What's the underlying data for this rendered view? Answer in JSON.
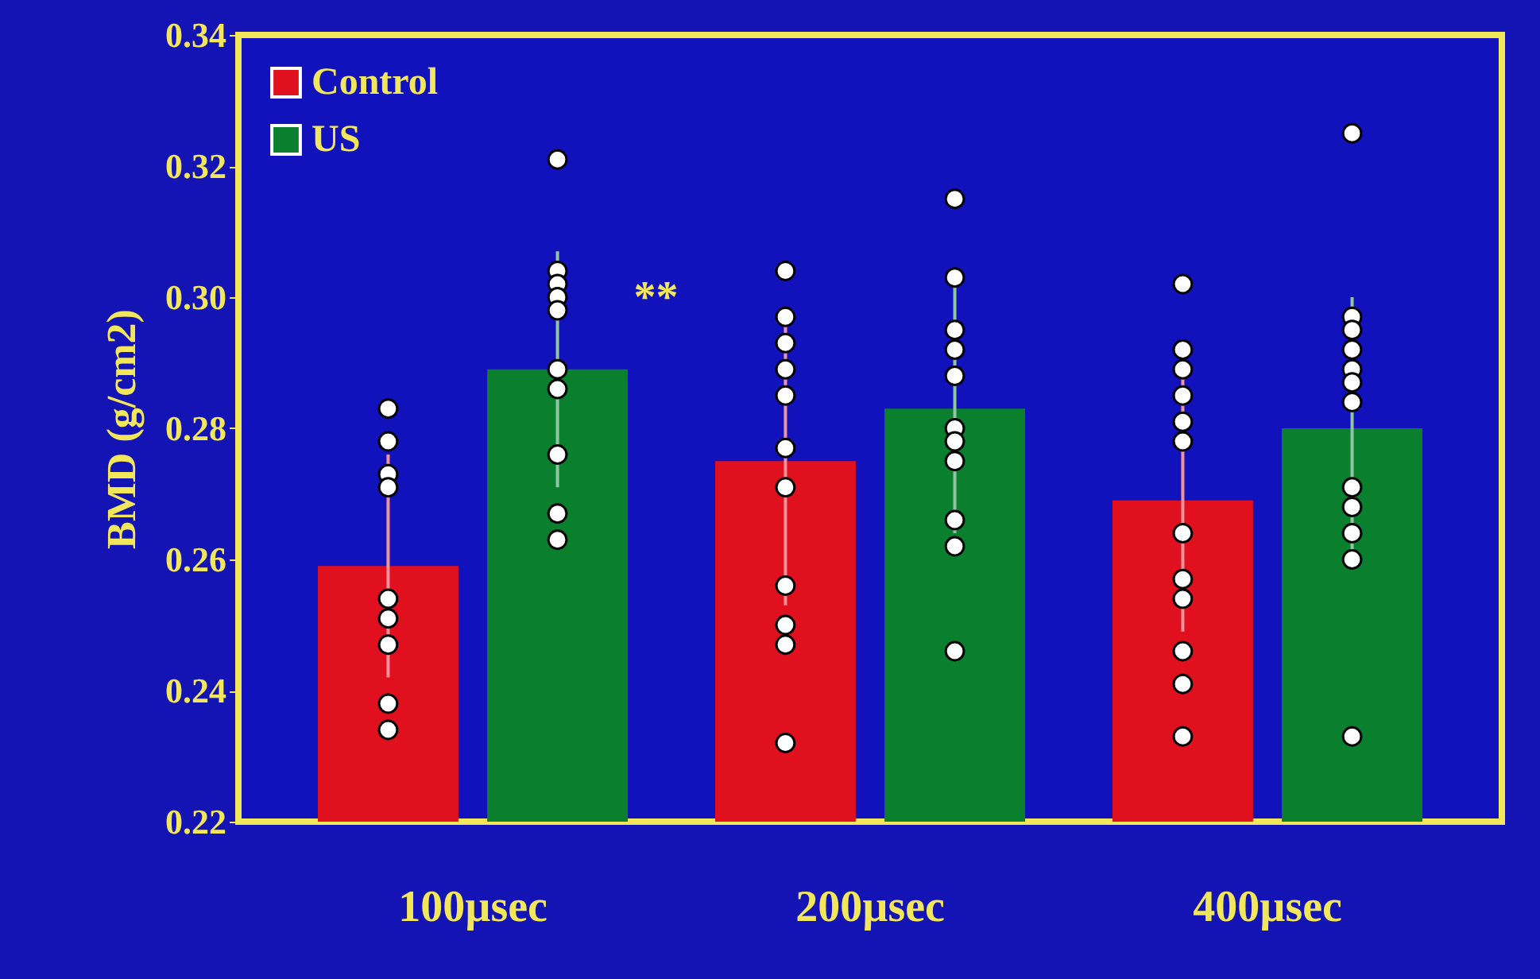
{
  "chart_data": {
    "type": "bar",
    "ylabel": "BMD (g/cm2)",
    "categories": [
      "100µsec",
      "200µsec",
      "400µsec"
    ],
    "ylim": [
      0.22,
      0.34
    ],
    "yticks": [
      0.22,
      0.24,
      0.26,
      0.28,
      {
        "value": 0.3,
        "label": "0.30"
      },
      0.32,
      0.34
    ],
    "grid": false,
    "legend": "top left",
    "series": [
      {
        "name": "Control",
        "type": "bar",
        "color": "#e0101e",
        "values": [
          0.259,
          0.275,
          0.269
        ],
        "errors": [
          0.017,
          0.022,
          0.02
        ]
      },
      {
        "name": "US",
        "type": "bar",
        "color": "#0a7f2e",
        "values": [
          0.289,
          0.283,
          0.28
        ],
        "errors": [
          0.018,
          0.019,
          0.02
        ]
      },
      {
        "type": "scatter",
        "color": "#ffffff",
        "x": [
          "100µsec",
          "100µsec",
          "100µsec",
          "100µsec",
          "100µsec",
          "100µsec",
          "100µsec",
          "100µsec",
          "100µsec",
          "200µsec",
          "200µsec",
          "200µsec",
          "200µsec",
          "200µsec",
          "200µsec",
          "200µsec",
          "200µsec",
          "200µsec",
          "200µsec",
          "200µsec",
          "400µsec",
          "400µsec",
          "400µsec",
          "400µsec",
          "400µsec",
          "400µsec",
          "400µsec",
          "400µsec",
          "400µsec",
          "400µsec",
          "400µsec",
          "400µsec"
        ],
        "values": [
          0.283,
          0.278,
          0.273,
          0.271,
          0.254,
          0.251,
          0.247,
          0.238,
          0.234,
          0.304,
          0.297,
          0.293,
          0.289,
          0.285,
          0.277,
          0.271,
          0.256,
          0.25,
          0.247,
          0.232,
          0.302,
          0.292,
          0.289,
          0.285,
          0.281,
          0.278,
          0.264,
          0.257,
          0.254,
          0.246,
          0.241,
          0.233
        ]
      },
      {
        "type": "scatter",
        "color": "#ffffff",
        "x": [
          "100µsec",
          "100µsec",
          "100µsec",
          "100µsec",
          "100µsec",
          "100µsec",
          "100µsec",
          "100µsec",
          "100µsec",
          "100µsec",
          "200µsec",
          "200µsec",
          "200µsec",
          "200µsec",
          "200µsec",
          "200µsec",
          "200µsec",
          "200µsec",
          "200µsec",
          "200µsec",
          "200µsec",
          "400µsec",
          "400µsec",
          "400µsec",
          "400µsec",
          "400µsec",
          "400µsec",
          "400µsec",
          "400µsec",
          "400µsec",
          "400µsec",
          "400µsec",
          "400µsec"
        ],
        "values": [
          0.321,
          0.304,
          0.302,
          0.3,
          0.298,
          0.289,
          0.286,
          0.276,
          0.267,
          0.263,
          0.315,
          0.303,
          0.295,
          0.292,
          0.288,
          0.28,
          0.278,
          0.275,
          0.266,
          0.262,
          0.246,
          0.325,
          0.297,
          0.295,
          0.292,
          0.289,
          0.287,
          0.284,
          0.271,
          0.268,
          0.264,
          0.26,
          0.233
        ]
      }
    ],
    "annotations": [
      "**"
    ]
  }
}
